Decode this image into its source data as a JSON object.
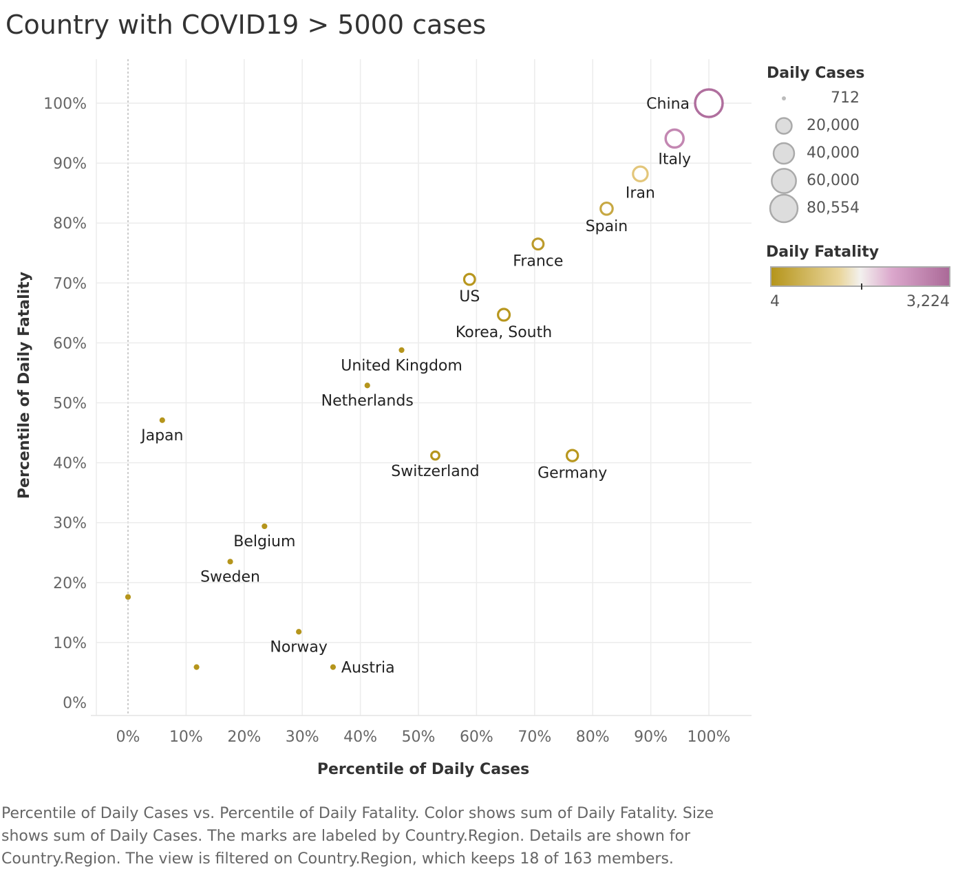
{
  "title": "Country with COVID19 > 5000 cases",
  "caption": "Percentile of Daily Cases vs. Percentile of Daily Fatality.  Color shows sum of Daily Fatality.  Size shows sum of Daily Cases.  The marks are labeled by Country.Region.  Details are shown for Country.Region. The view is filtered on Country.Region, which keeps 18 of 163 members.",
  "legend": {
    "size_title": "Daily Cases",
    "size_items": [
      {
        "label": "712",
        "value": 712
      },
      {
        "label": "20,000",
        "value": 20000
      },
      {
        "label": "40,000",
        "value": 40000
      },
      {
        "label": "60,000",
        "value": 60000
      },
      {
        "label": "80,554",
        "value": 80554
      }
    ],
    "color_title": "Daily Fatality",
    "color_min_label": "4",
    "color_max_label": "3,224",
    "color_stops": [
      "#b5951c",
      "#e9d59a",
      "#f3f1ee",
      "#dba7cc",
      "#ab6a98"
    ]
  },
  "chart_data": {
    "type": "scatter",
    "xlabel": "Percentile of Daily Cases",
    "ylabel": "Percentile of Daily Fatality",
    "xlim": [
      -0.05,
      1.05
    ],
    "ylim": [
      -0.02,
      1.07
    ],
    "x_ticks": [
      "0%",
      "10%",
      "20%",
      "30%",
      "40%",
      "50%",
      "60%",
      "70%",
      "80%",
      "90%",
      "100%"
    ],
    "y_ticks": [
      "0%",
      "10%",
      "20%",
      "30%",
      "40%",
      "50%",
      "60%",
      "70%",
      "80%",
      "90%",
      "100%"
    ],
    "grid": true,
    "points": [
      {
        "label": "China",
        "x": 1.0,
        "y": 1.0,
        "cases": 80554,
        "color": "#b06f9e",
        "label_pos": "left"
      },
      {
        "label": "Italy",
        "x": 0.941,
        "y": 0.941,
        "cases": 27980,
        "color": "#c387b2",
        "label_pos": "below"
      },
      {
        "label": "Iran",
        "x": 0.882,
        "y": 0.882,
        "cases": 16169,
        "color": "#e3c67a",
        "label_pos": "below"
      },
      {
        "label": "Spain",
        "x": 0.824,
        "y": 0.824,
        "cases": 9191,
        "color": "#c7a843",
        "label_pos": "below"
      },
      {
        "label": "France",
        "x": 0.706,
        "y": 0.765,
        "cases": 6650,
        "color": "#bc9b2c",
        "label_pos": "below"
      },
      {
        "label": "US",
        "x": 0.588,
        "y": 0.706,
        "cases": 6421,
        "color": "#b8971f",
        "label_pos": "below"
      },
      {
        "label": "Korea, South",
        "x": 0.647,
        "y": 0.647,
        "cases": 8320,
        "color": "#b8971f",
        "label_pos": "below"
      },
      {
        "label": "United Kingdom",
        "x": 0.471,
        "y": 0.588,
        "cases": 1950,
        "color": "#b5951c",
        "label_pos": "below"
      },
      {
        "label": "Netherlands",
        "x": 0.412,
        "y": 0.529,
        "cases": 1708,
        "color": "#b5951c",
        "label_pos": "below"
      },
      {
        "label": "Japan",
        "x": 0.059,
        "y": 0.471,
        "cases": 825,
        "color": "#b5951c",
        "label_pos": "below"
      },
      {
        "label": "Switzerland",
        "x": 0.529,
        "y": 0.412,
        "cases": 2200,
        "color": "#b5951c",
        "label_pos": "below"
      },
      {
        "label": "Germany",
        "x": 0.765,
        "y": 0.412,
        "cases": 7272,
        "color": "#b8971f",
        "label_pos": "below"
      },
      {
        "label": "Belgium",
        "x": 0.235,
        "y": 0.294,
        "cases": 1243,
        "color": "#b5951c",
        "label_pos": "below"
      },
      {
        "label": "Sweden",
        "x": 0.176,
        "y": 0.235,
        "cases": 1103,
        "color": "#b5951c",
        "label_pos": "below"
      },
      {
        "label": "",
        "x": 0.0,
        "y": 0.176,
        "cases": 712,
        "color": "#b5951c",
        "label_pos": "none"
      },
      {
        "label": "Norway",
        "x": 0.294,
        "y": 0.118,
        "cases": 1256,
        "color": "#b5951c",
        "label_pos": "below"
      },
      {
        "label": "",
        "x": 0.118,
        "y": 0.059,
        "cases": 1000,
        "color": "#b5951c",
        "label_pos": "none"
      },
      {
        "label": "Austria",
        "x": 0.353,
        "y": 0.059,
        "cases": 1332,
        "color": "#b5951c",
        "label_pos": "right"
      }
    ]
  }
}
